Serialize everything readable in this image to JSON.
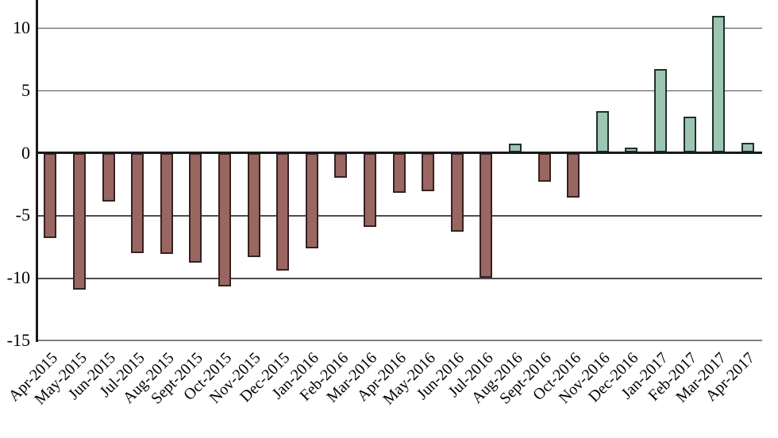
{
  "chart_data": {
    "type": "bar",
    "title": "",
    "xlabel": "",
    "ylabel": "",
    "grid": true,
    "legend": false,
    "categories": [
      "Apr-2015",
      "May-2015",
      "Jun-2015",
      "Jul-2015",
      "Aug-2015",
      "Sept-2015",
      "Oct-2015",
      "Nov-2015",
      "Dec-2015",
      "Jan-2016",
      "Feb-2016",
      "Mar-2016",
      "Apr-2016",
      "May-2016",
      "Jun-2016",
      "Jul-2016",
      "Aug-2016",
      "Sept-2016",
      "Oct-2016",
      "Nov-2016",
      "Dec-2016",
      "Jan-2017",
      "Feb-2017",
      "Mar-2017",
      "Apr-2017"
    ],
    "values": [
      -6.8,
      -10.9,
      -3.9,
      -8.0,
      -8.1,
      -8.8,
      -10.7,
      -8.3,
      -9.4,
      -7.6,
      -2.0,
      -5.9,
      -3.2,
      -3.1,
      -6.3,
      -10.0,
      0.7,
      -2.3,
      -3.6,
      3.3,
      0.4,
      6.7,
      2.9,
      10.9,
      0.8
    ],
    "yticks": [
      10,
      5,
      0,
      -5,
      -10,
      -15
    ],
    "ylim": [
      -15,
      12.2
    ],
    "colors": {
      "positive_fill": "#9cc5b2",
      "positive_border": "#20302a",
      "negative_fill": "#9a6662",
      "negative_border": "#352220",
      "gridline": "#4d4d4d",
      "zero_line": "#1a1a1a",
      "bottom_line": "#808080",
      "axis": "#1a1a1a",
      "background": "#ffffff",
      "label_color": "#000000"
    }
  }
}
